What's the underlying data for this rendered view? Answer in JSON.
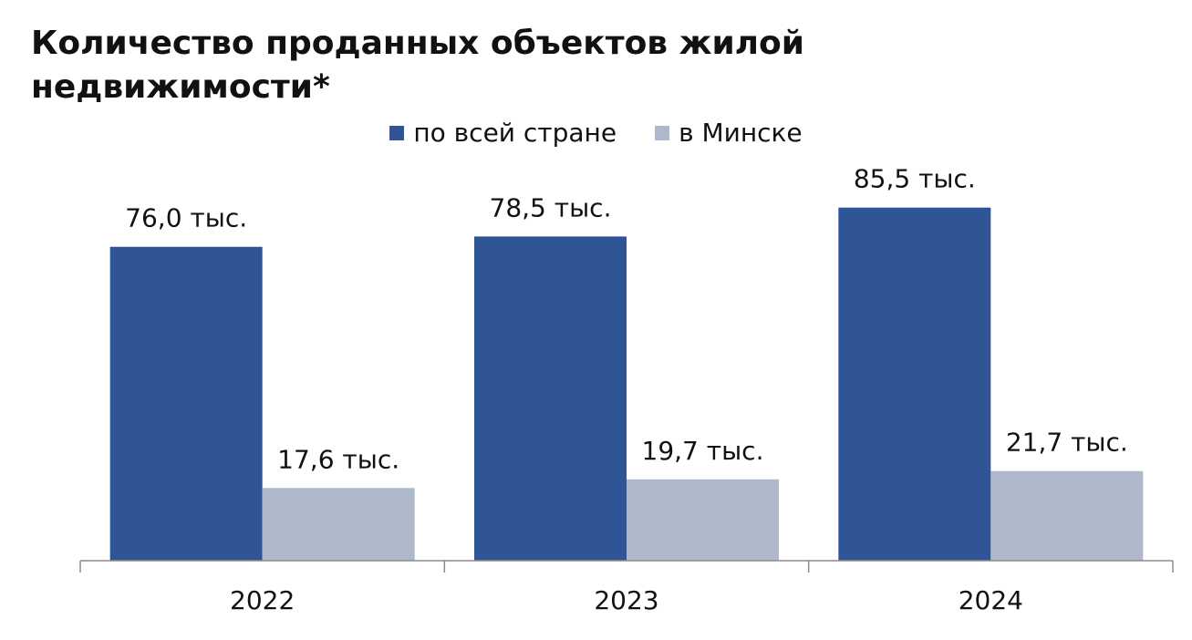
{
  "title": "Количество проданных объектов жилой недвижимости*",
  "legend": [
    {
      "label": "по всей стране",
      "color": "#2f5597"
    },
    {
      "label": "в Минске",
      "color": "#adb9ca"
    }
  ],
  "chart_data": {
    "type": "bar",
    "title": "Количество проданных объектов жилой недвижимости*",
    "categories": [
      "2022",
      "2023",
      "2024"
    ],
    "series": [
      {
        "name": "по всей стране",
        "color": "#2f5597",
        "values": [
          76.0,
          78.5,
          85.5
        ],
        "labels": [
          "76,0 тыс.",
          "78,5 тыс.",
          "85,5 тыс."
        ]
      },
      {
        "name": "в Минске",
        "color": "#adb9ca",
        "values": [
          17.6,
          19.7,
          21.7
        ],
        "labels": [
          "17,6 тыс.",
          "19,7 тыс.",
          "21,7 тыс."
        ]
      }
    ],
    "ylim": [
      0,
      100
    ],
    "grid": false,
    "legend_position": "top-center"
  }
}
